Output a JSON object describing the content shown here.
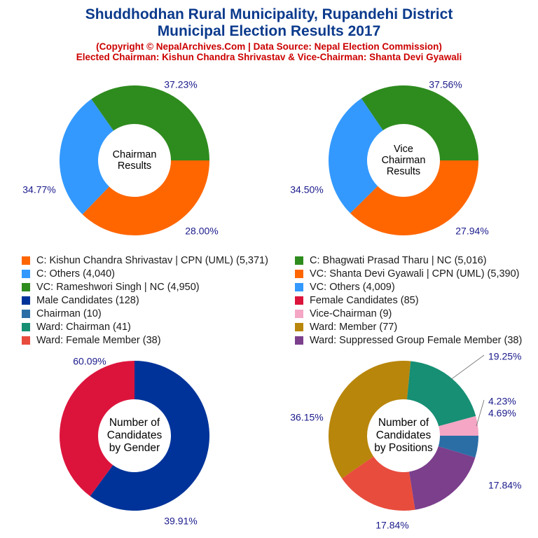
{
  "header": {
    "title_line1": "Shuddhodhan Rural Municipality, Rupandehi District",
    "title_line2": "Municipal Election Results 2017",
    "subtitle_line1": "(Copyright © NepalArchives.Com | Data Source: Nepal Election Commission)",
    "subtitle_line2": "Elected Chairman: Kishun Chandra Shrivastav & Vice-Chairman: Shanta Devi Gyawali"
  },
  "legend": [
    {
      "label": "C: Kishun Chandra Shrivastav | CPN (UML) (5,371)",
      "color": "#ff6600"
    },
    {
      "label": "C: Bhagwati Prasad Tharu | NC (5,016)",
      "color": "#2e8b1e"
    },
    {
      "label": "C: Others (4,040)",
      "color": "#3399ff"
    },
    {
      "label": "VC: Shanta Devi Gyawali | CPN (UML) (5,390)",
      "color": "#ff6600"
    },
    {
      "label": "VC: Rameshwori Singh | NC (4,950)",
      "color": "#2e8b1e"
    },
    {
      "label": "VC: Others (4,009)",
      "color": "#3399ff"
    },
    {
      "label": "Male Candidates (128)",
      "color": "#003399"
    },
    {
      "label": "Female Candidates (85)",
      "color": "#dc143c"
    },
    {
      "label": "Chairman (10)",
      "color": "#2b6ea6"
    },
    {
      "label": "Vice-Chairman (9)",
      "color": "#f4a6c4"
    },
    {
      "label": "Ward: Chairman (41)",
      "color": "#168f74"
    },
    {
      "label": "Ward: Member (77)",
      "color": "#b8860b"
    },
    {
      "label": "Ward: Female Member (38)",
      "color": "#e84c3d"
    },
    {
      "label": "Ward: Suppressed Group Female Member (38)",
      "color": "#7b3f8c"
    }
  ],
  "chart_data": [
    {
      "type": "pie",
      "center_label": [
        "Chairman",
        "Results"
      ],
      "slices": [
        {
          "label": "C: Kishun Chandra Shrivastav | CPN (UML)",
          "value": 5371,
          "percent": "37.23%",
          "color": "#ff6600"
        },
        {
          "label": "C: Others",
          "value": 4040,
          "percent": "28.00%",
          "color": "#3399ff"
        },
        {
          "label": "C: Bhagwati Prasad Tharu | NC",
          "value": 5016,
          "percent": "34.77%",
          "color": "#2e8b1e"
        }
      ]
    },
    {
      "type": "pie",
      "center_label": [
        "Vice",
        "Chairman",
        "Results"
      ],
      "slices": [
        {
          "label": "VC: Shanta Devi Gyawali | CPN (UML)",
          "value": 5390,
          "percent": "37.56%",
          "color": "#ff6600"
        },
        {
          "label": "VC: Others",
          "value": 4009,
          "percent": "27.94%",
          "color": "#3399ff"
        },
        {
          "label": "VC: Rameshwori Singh | NC",
          "value": 4950,
          "percent": "34.50%",
          "color": "#2e8b1e"
        }
      ]
    },
    {
      "type": "pie",
      "center_label": [
        "Number of",
        "Candidates",
        "by Gender"
      ],
      "slices": [
        {
          "label": "Male Candidates",
          "value": 128,
          "percent": "60.09%",
          "color": "#003399"
        },
        {
          "label": "Female Candidates",
          "value": 85,
          "percent": "39.91%",
          "color": "#dc143c"
        }
      ]
    },
    {
      "type": "pie",
      "center_label": [
        "Number of",
        "Candidates",
        "by Positions"
      ],
      "slices": [
        {
          "label": "Chairman",
          "value": 10,
          "percent": "4.69%",
          "color": "#2b6ea6"
        },
        {
          "label": "Ward: Suppressed Group Female Member",
          "value": 38,
          "percent": "17.84%",
          "color": "#7b3f8c"
        },
        {
          "label": "Ward: Female Member",
          "value": 38,
          "percent": "17.84%",
          "color": "#e84c3d"
        },
        {
          "label": "Ward: Member",
          "value": 77,
          "percent": "36.15%",
          "color": "#b8860b"
        },
        {
          "label": "Ward: Chairman",
          "value": 41,
          "percent": "19.25%",
          "color": "#168f74"
        },
        {
          "label": "Vice-Chairman",
          "value": 9,
          "percent": "4.23%",
          "color": "#f4a6c4"
        }
      ]
    }
  ]
}
